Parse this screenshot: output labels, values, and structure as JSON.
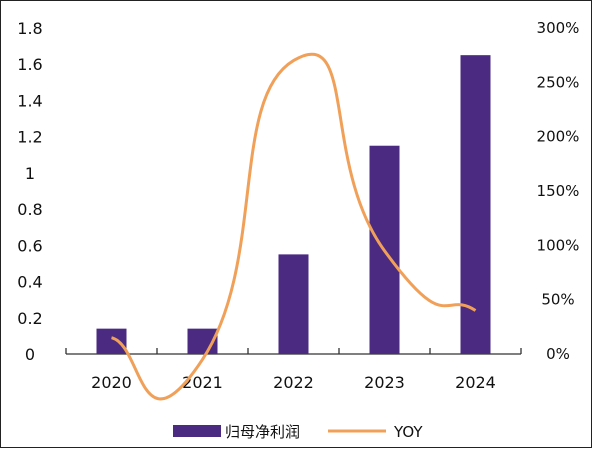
{
  "chart_data": {
    "type": "bar",
    "categories": [
      "2020",
      "2021",
      "2022",
      "2023",
      "2024"
    ],
    "series": [
      {
        "name": "归母净利润",
        "type": "bar",
        "axis": "left",
        "values": [
          0.14,
          0.14,
          0.55,
          1.15,
          1.65
        ]
      },
      {
        "name": "YOY",
        "type": "line",
        "axis": "right",
        "values": [
          15,
          -5,
          270,
          95,
          40
        ]
      }
    ],
    "y_left": {
      "min": 0,
      "max": 1.8,
      "ticks": [
        "0",
        "0.2",
        "0.4",
        "0.6",
        "0.8",
        "1",
        "1.2",
        "1.4",
        "1.6",
        "1.8"
      ]
    },
    "y_right": {
      "min": 0,
      "max": 300,
      "ticks": [
        "0%",
        "50%",
        "100%",
        "150%",
        "200%",
        "250%",
        "300%"
      ]
    },
    "grid": false,
    "legend_position": "bottom-center",
    "colors": {
      "bar": "#4b2a82",
      "line": "#f0a058"
    }
  }
}
